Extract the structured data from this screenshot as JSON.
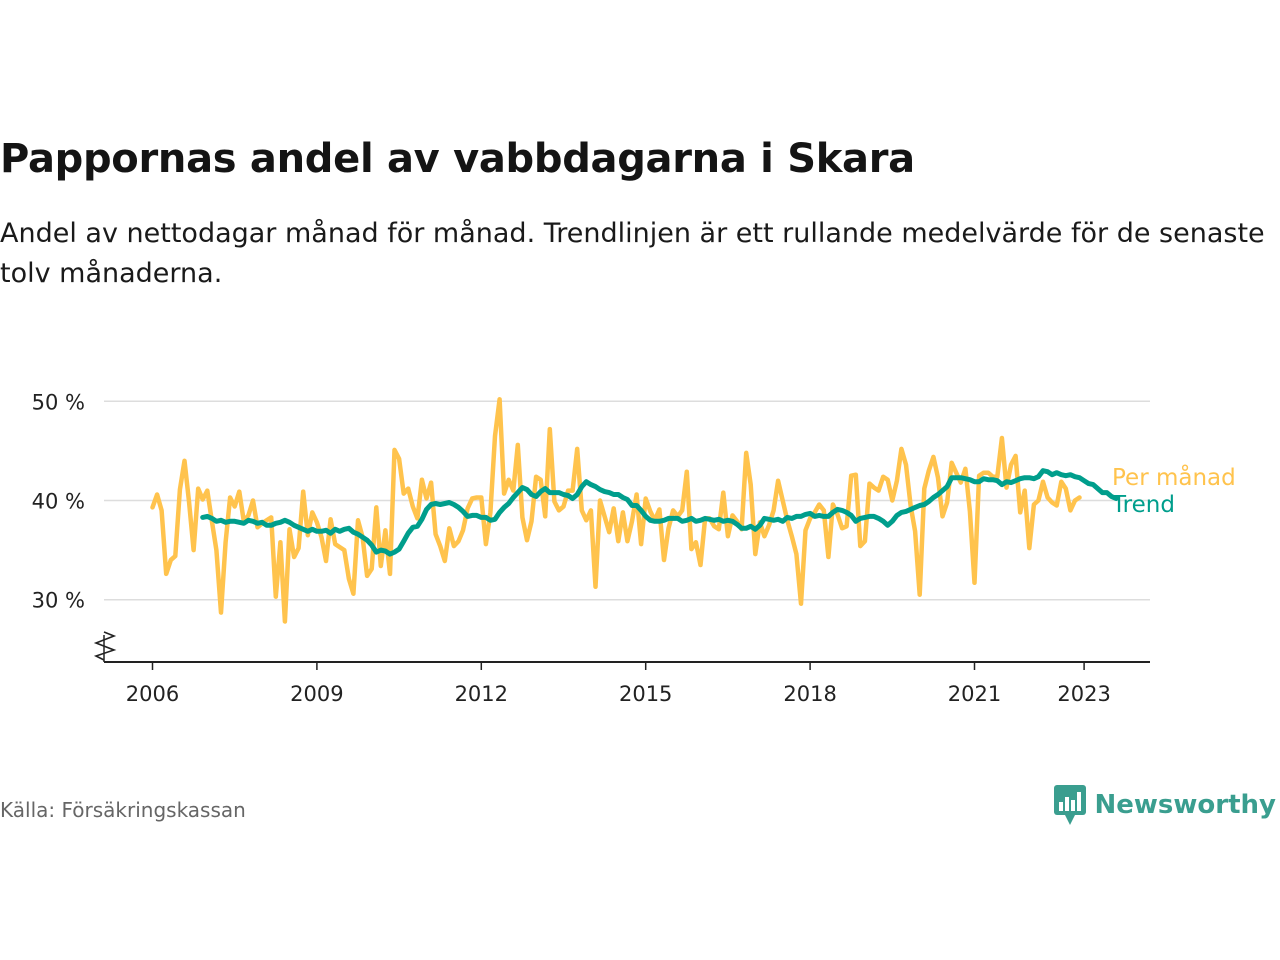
{
  "header": {
    "title": "Pappornas andel av vabbdagarna i Skara",
    "subtitle": "Andel av nettodagar månad för månad. Trendlinjen är ett rullande medelvärde för de senaste tolv månaderna."
  },
  "footer": {
    "source": "Källa: Försäkringskassan",
    "brand": "Newsworthy"
  },
  "colors": {
    "monthly": "#FFC34D",
    "trend": "#009E8C",
    "brand": "#3A9E8F",
    "grid": "#DDDDDD",
    "axis": "#222222"
  },
  "chart_data": {
    "type": "line",
    "x_axis": {
      "range": [
        2006,
        2023.5
      ],
      "ticks": [
        2006,
        2009,
        2012,
        2015,
        2018,
        2021,
        2023
      ],
      "tick_labels": [
        "2006",
        "2009",
        "2012",
        "2015",
        "2018",
        "2021",
        "2023"
      ],
      "axis_break_marker": true
    },
    "y_axis": {
      "range": [
        24,
        51
      ],
      "ticks": [
        30,
        40,
        50
      ],
      "tick_labels": [
        "30 %",
        "40 %",
        "50 %"
      ],
      "unit": "%"
    },
    "grid": true,
    "legend": "inline-right",
    "series": [
      {
        "name": "Per månad",
        "color_key": "monthly",
        "start": "2006-01",
        "values": [
          39.3,
          40.6,
          39.0,
          32.6,
          34.0,
          34.4,
          41.1,
          44.0,
          39.9,
          35.0,
          41.2,
          40.1,
          41.0,
          37.9,
          35.0,
          28.7,
          35.8,
          40.3,
          39.4,
          40.9,
          37.9,
          38.5,
          40.0,
          37.3,
          37.7,
          38.0,
          38.3,
          30.3,
          35.8,
          27.8,
          37.1,
          34.3,
          35.2,
          40.9,
          36.5,
          38.8,
          37.8,
          36.3,
          33.9,
          38.1,
          35.6,
          35.3,
          35.0,
          32.1,
          30.6,
          38.0,
          36.3,
          32.4,
          33.1,
          39.3,
          33.4,
          37.0,
          32.6,
          45.1,
          44.2,
          40.7,
          41.2,
          39.4,
          38.2,
          42.1,
          40.2,
          41.8,
          36.6,
          35.4,
          33.9,
          37.2,
          35.4,
          35.9,
          37.0,
          39.2,
          40.2,
          40.3,
          40.3,
          35.6,
          38.8,
          46.5,
          50.2,
          40.7,
          42.1,
          41.0,
          45.6,
          38.3,
          36.0,
          37.9,
          42.4,
          42.1,
          38.4,
          47.2,
          39.9,
          39.0,
          39.4,
          41.0,
          41.0,
          45.2,
          39.0,
          38.0,
          39.0,
          31.3,
          40.0,
          38.4,
          36.8,
          39.2,
          35.9,
          38.8,
          35.9,
          37.9,
          40.6,
          35.6,
          40.2,
          38.9,
          38.0,
          39.1,
          34.0,
          37.2,
          39.0,
          38.4,
          39.0,
          42.9,
          35.1,
          35.8,
          33.5,
          38.2,
          38.2,
          37.4,
          37.1,
          40.8,
          36.4,
          38.5,
          37.9,
          37.1,
          44.8,
          41.6,
          34.6,
          37.8,
          36.4,
          37.5,
          39.0,
          42.0,
          40.0,
          38.0,
          36.4,
          34.6,
          29.6,
          37.0,
          38.2,
          38.8,
          39.6,
          39.0,
          34.3,
          39.6,
          38.6,
          37.2,
          37.4,
          42.5,
          42.6,
          35.4,
          35.9,
          41.7,
          41.3,
          41.0,
          42.4,
          42.1,
          40.0,
          42.0,
          45.2,
          43.6,
          39.5,
          36.9,
          30.5,
          41.2,
          43.0,
          44.4,
          42.3,
          38.4,
          39.8,
          43.8,
          42.8,
          41.8,
          43.2,
          38.9,
          31.7,
          42.5,
          42.8,
          42.8,
          42.4,
          42.4,
          46.3,
          41.3,
          43.6,
          44.5,
          38.8,
          41.0,
          35.2,
          39.6,
          40.0,
          41.9,
          40.3,
          39.8,
          39.5,
          41.9,
          41.2,
          39.0,
          40.0,
          40.3
        ]
      },
      {
        "name": "Trend",
        "color_key": "trend",
        "start": "2006-12",
        "values": [
          38.3,
          38.4,
          38.2,
          37.9,
          38.0,
          37.8,
          37.9,
          37.9,
          37.8,
          37.7,
          38.0,
          37.9,
          37.7,
          37.8,
          37.5,
          37.5,
          37.7,
          37.8,
          38.0,
          37.8,
          37.5,
          37.3,
          37.1,
          36.9,
          37.1,
          36.9,
          36.9,
          37.0,
          36.7,
          37.1,
          36.9,
          37.1,
          37.2,
          36.8,
          36.6,
          36.3,
          36.0,
          35.5,
          34.8,
          35.0,
          34.9,
          34.6,
          34.8,
          35.1,
          35.9,
          36.7,
          37.3,
          37.4,
          38.1,
          39.1,
          39.6,
          39.7,
          39.6,
          39.7,
          39.8,
          39.6,
          39.3,
          38.9,
          38.4,
          38.5,
          38.5,
          38.3,
          38.3,
          38.0,
          38.1,
          38.8,
          39.3,
          39.7,
          40.3,
          40.8,
          41.3,
          41.1,
          40.6,
          40.4,
          40.9,
          41.2,
          40.8,
          40.8,
          40.8,
          40.6,
          40.5,
          40.2,
          40.6,
          41.4,
          41.9,
          41.6,
          41.4,
          41.1,
          40.9,
          40.8,
          40.6,
          40.6,
          40.3,
          40.1,
          39.5,
          39.5,
          39.0,
          38.4,
          38.0,
          37.9,
          37.9,
          38.0,
          38.2,
          38.2,
          38.2,
          37.9,
          38.0,
          38.2,
          37.9,
          38.0,
          38.2,
          38.1,
          38.0,
          38.1,
          37.9,
          38.0,
          37.9,
          37.6,
          37.2,
          37.2,
          37.4,
          37.1,
          37.5,
          38.2,
          38.1,
          38.0,
          38.1,
          37.9,
          38.3,
          38.2,
          38.4,
          38.4,
          38.6,
          38.7,
          38.4,
          38.5,
          38.4,
          38.4,
          38.8,
          39.1,
          39.0,
          38.8,
          38.5,
          37.9,
          38.2,
          38.3,
          38.4,
          38.4,
          38.2,
          37.9,
          37.5,
          37.9,
          38.5,
          38.8,
          38.9,
          39.1,
          39.3,
          39.5,
          39.6,
          39.9,
          40.3,
          40.6,
          41.0,
          41.4,
          42.3,
          42.3,
          42.3,
          42.2,
          42.1,
          41.9,
          41.9,
          42.2,
          42.1,
          42.1,
          42.0,
          41.6,
          41.9,
          41.8,
          42.0,
          42.2,
          42.3,
          42.3,
          42.2,
          42.4,
          43.0,
          42.9,
          42.6,
          42.8,
          42.6,
          42.5,
          42.6,
          42.4,
          42.3,
          42.0,
          41.7,
          41.6,
          41.2,
          40.8,
          40.8,
          40.4,
          40.2
        ]
      }
    ]
  }
}
